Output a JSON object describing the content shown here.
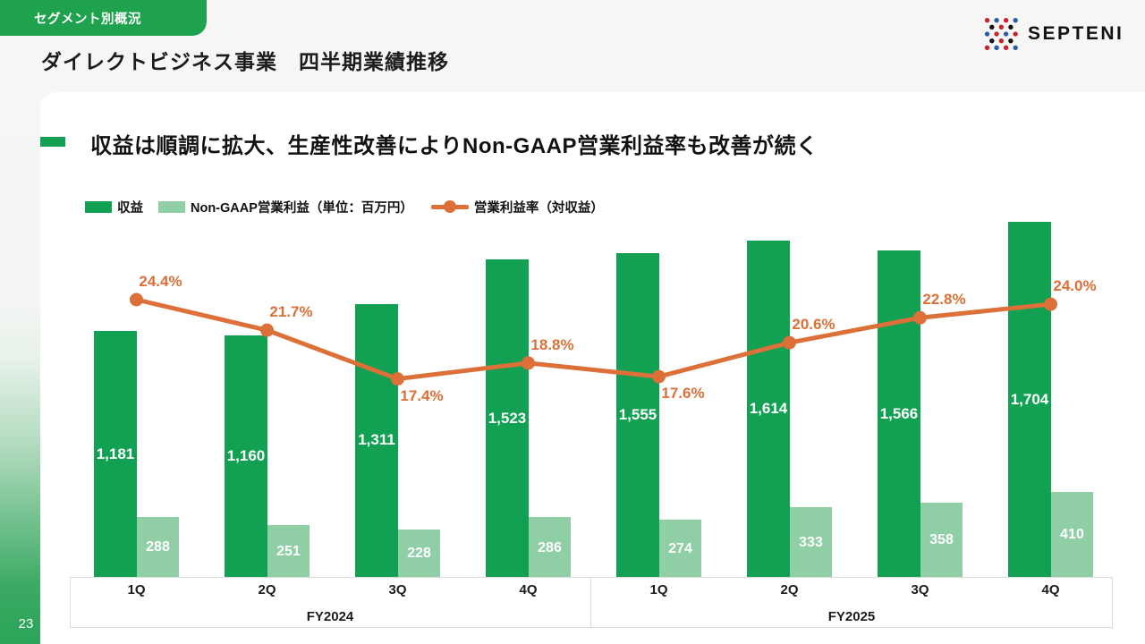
{
  "page": {
    "tag": "セグメント別概況",
    "title": "ダイレクトビジネス事業　四半期業績推移",
    "page_number": "23",
    "logo_text": "SEPTENI"
  },
  "headline": "収益は順調に拡大、生産性改善によりNon-GAAP営業利益率も改善が続く",
  "legend": {
    "revenue": "収益",
    "profit": "Non-GAAP営業利益（単位：百万円）",
    "margin": "営業利益率（対収益）"
  },
  "colors": {
    "revenue_bar": "#12a053",
    "profit_bar": "#90cfa5",
    "margin_line": "#dc7038",
    "tag_green": "#1ea24d"
  },
  "icons": {
    "logo_dots": "septeni-dots-icon"
  },
  "chart_data": {
    "type": "bar",
    "title": "ダイレクトビジネス事業　四半期業績推移",
    "unit": "百万円",
    "categories": [
      "1Q",
      "2Q",
      "3Q",
      "4Q",
      "1Q",
      "2Q",
      "3Q",
      "4Q"
    ],
    "groups": [
      {
        "label": "FY2024",
        "span": 4
      },
      {
        "label": "FY2025",
        "span": 4
      }
    ],
    "series": [
      {
        "name": "収益",
        "type": "bar",
        "color": "#12a053",
        "values": [
          1181,
          1160,
          1311,
          1523,
          1555,
          1614,
          1566,
          1704
        ]
      },
      {
        "name": "Non-GAAP営業利益",
        "type": "bar",
        "color": "#90cfa5",
        "values": [
          288,
          251,
          228,
          286,
          274,
          333,
          358,
          410
        ]
      },
      {
        "name": "営業利益率（対収益）",
        "type": "line",
        "color": "#dc7038",
        "unit": "%",
        "values": [
          24.4,
          21.7,
          17.4,
          18.8,
          17.6,
          20.6,
          22.8,
          24.0
        ],
        "label_positions": [
          "above",
          "above",
          "below",
          "above",
          "below",
          "above",
          "above",
          "above"
        ]
      }
    ]
  }
}
